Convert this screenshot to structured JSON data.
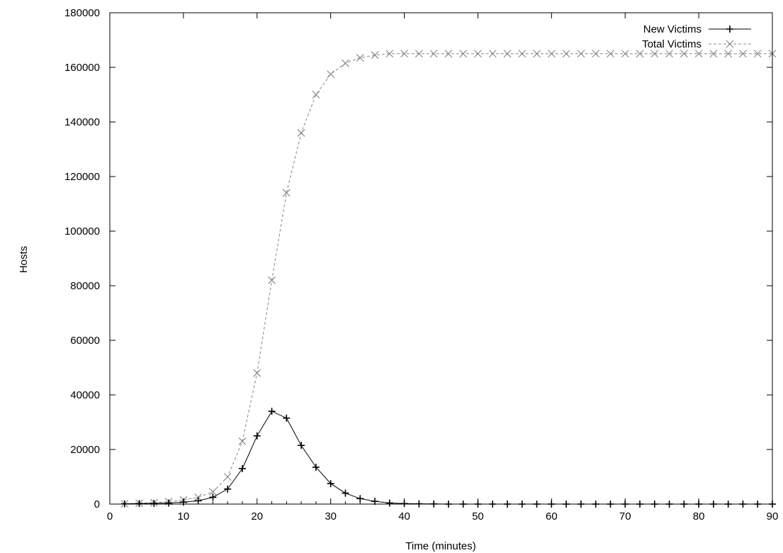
{
  "chart_data": {
    "type": "line",
    "title": "",
    "xlabel": "Time (minutes)",
    "ylabel": "Hosts",
    "xlim": [
      0,
      90
    ],
    "ylim": [
      0,
      180000
    ],
    "xticks": [
      0,
      10,
      20,
      30,
      40,
      50,
      60,
      70,
      80,
      90
    ],
    "yticks": [
      0,
      20000,
      40000,
      60000,
      80000,
      100000,
      120000,
      140000,
      160000,
      180000
    ],
    "xtick_labels": [
      "0",
      "10",
      "20",
      "30",
      "40",
      "50",
      "60",
      "70",
      "80",
      "90"
    ],
    "ytick_labels": [
      "0",
      "20000",
      "40000",
      "60000",
      "80000",
      "100000",
      "120000",
      "140000",
      "160000",
      "180000"
    ],
    "grid": false,
    "legend_position": "top-right",
    "x": [
      2,
      4,
      6,
      8,
      10,
      12,
      14,
      16,
      18,
      20,
      22,
      24,
      26,
      28,
      30,
      32,
      34,
      36,
      38,
      40,
      42,
      44,
      46,
      48,
      50,
      52,
      54,
      56,
      58,
      60,
      62,
      64,
      66,
      68,
      70,
      72,
      74,
      76,
      78,
      80,
      82,
      84,
      86,
      88,
      90
    ],
    "series": [
      {
        "name": "New Victims",
        "color": "#000000",
        "line_style": "solid",
        "marker": "plus",
        "values": [
          100,
          200,
          250,
          400,
          700,
          1200,
          2500,
          5500,
          13000,
          25000,
          34000,
          31500,
          21500,
          13500,
          7500,
          4000,
          2000,
          1000,
          400,
          200,
          100,
          50,
          0,
          0,
          0,
          0,
          0,
          0,
          0,
          0,
          0,
          0,
          0,
          0,
          0,
          0,
          0,
          0,
          0,
          0,
          0,
          0,
          0,
          0,
          0
        ]
      },
      {
        "name": "Total Victims",
        "color": "#888888",
        "line_style": "dashed",
        "marker": "x",
        "values": [
          100,
          300,
          500,
          900,
          1500,
          2500,
          4500,
          10000,
          23000,
          48000,
          82000,
          114000,
          136000,
          150000,
          157500,
          161500,
          163500,
          164500,
          165000,
          165000,
          165000,
          165000,
          165000,
          165000,
          165000,
          165000,
          165000,
          165000,
          165000,
          165000,
          165000,
          165000,
          165000,
          165000,
          165000,
          165000,
          165000,
          165000,
          165000,
          165000,
          165000,
          165000,
          165000,
          165000,
          165000
        ]
      }
    ]
  }
}
